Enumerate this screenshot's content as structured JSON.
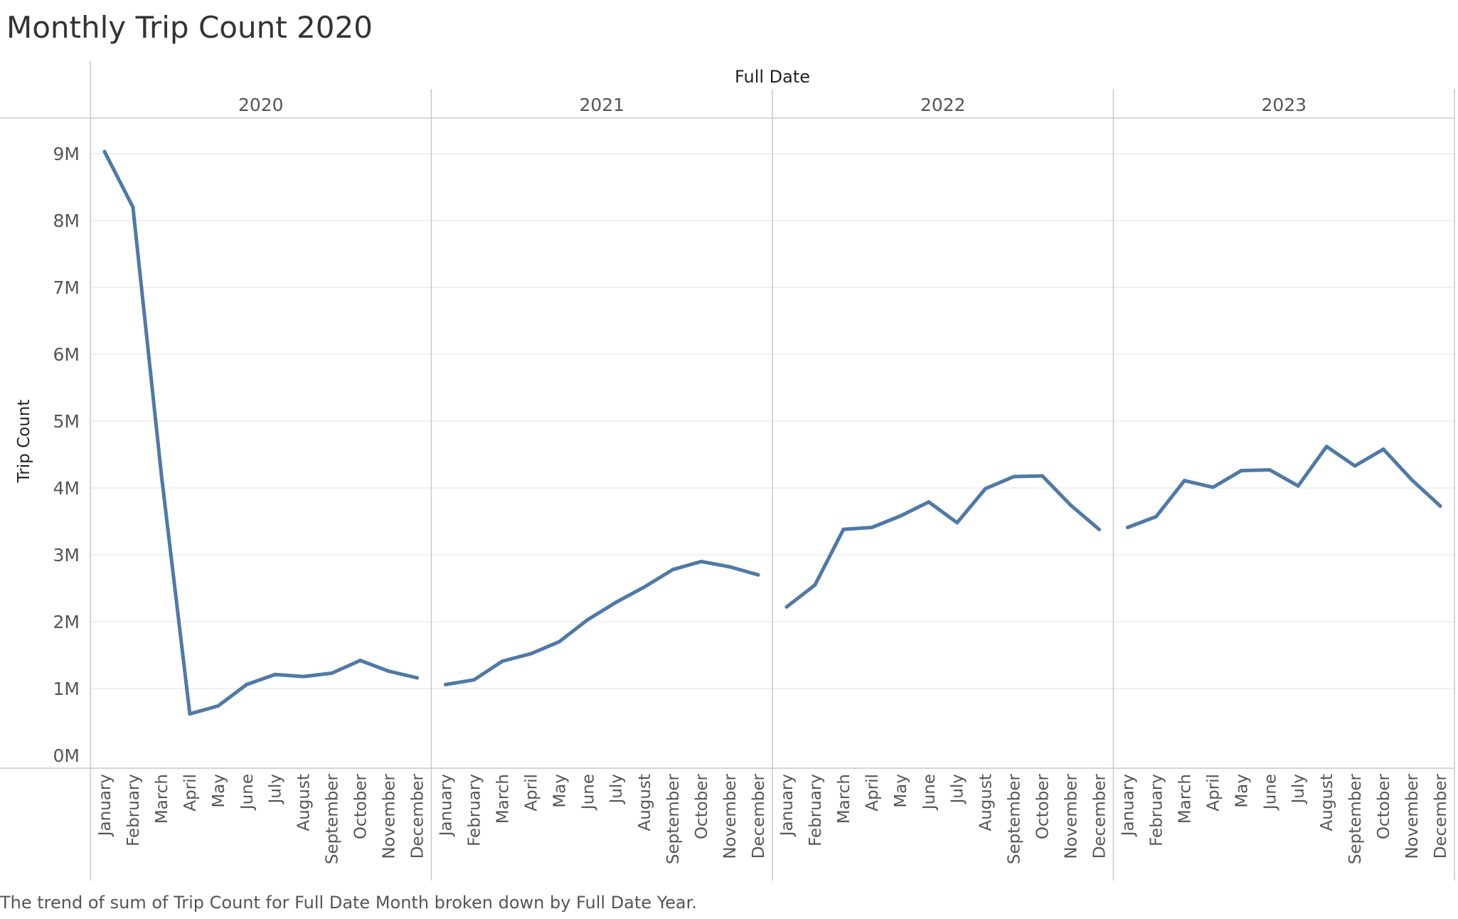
{
  "title": "Monthly Trip Count 2020",
  "caption": "The trend of sum of Trip Count for Full Date Month broken down by Full Date Year.",
  "chart_data": {
    "type": "line",
    "header_label": "Full Date",
    "ylabel": "Trip Count",
    "ylim": [
      0,
      9000000
    ],
    "yticks": [
      0,
      1000000,
      2000000,
      3000000,
      4000000,
      5000000,
      6000000,
      7000000,
      8000000,
      9000000
    ],
    "ytick_labels": [
      "0M",
      "1M",
      "2M",
      "3M",
      "4M",
      "5M",
      "6M",
      "7M",
      "8M",
      "9M"
    ],
    "months": [
      "January",
      "February",
      "March",
      "April",
      "May",
      "June",
      "July",
      "August",
      "September",
      "October",
      "November",
      "December"
    ],
    "panels": [
      {
        "year": "2020",
        "values": [
          9030000,
          8200000,
          4200000,
          620000,
          740000,
          1060000,
          1210000,
          1180000,
          1230000,
          1420000,
          1260000,
          1160000
        ]
      },
      {
        "year": "2021",
        "values": [
          1060000,
          1130000,
          1410000,
          1520000,
          1700000,
          2030000,
          2290000,
          2520000,
          2780000,
          2900000,
          2820000,
          2700000
        ]
      },
      {
        "year": "2022",
        "values": [
          2220000,
          2550000,
          3380000,
          3410000,
          3580000,
          3790000,
          3480000,
          3990000,
          4170000,
          4180000,
          3740000,
          3380000
        ]
      },
      {
        "year": "2023",
        "values": [
          3410000,
          3570000,
          4110000,
          4010000,
          4260000,
          4270000,
          4030000,
          4620000,
          4330000,
          4580000,
          4120000,
          3730000
        ]
      }
    ],
    "colors": {
      "line": "#4e79a7",
      "grid": "#ebebeb",
      "divider": "#c8c8c8",
      "text": "#555555",
      "title": "#333333"
    }
  }
}
